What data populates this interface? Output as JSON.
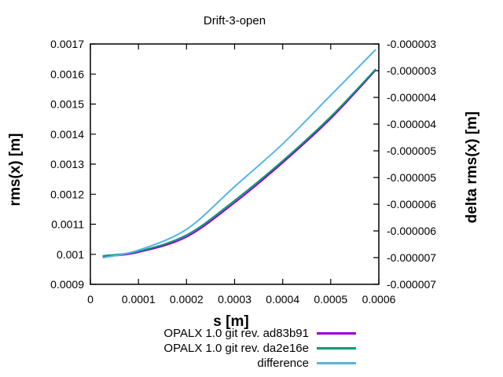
{
  "title": "Drift-3-open",
  "axes": {
    "x": {
      "label": "s [m]",
      "tick_labels": [
        "0",
        "0.0001",
        "0.0002",
        "0.0003",
        "0.0004",
        "0.0005",
        "0.0006"
      ]
    },
    "y_left": {
      "label": "rms(x) [m]",
      "tick_labels_top_to_bottom": [
        "0.0017",
        "0.0016",
        "0.0015",
        "0.0014",
        "0.0013",
        "0.0012",
        "0.0011",
        "0.001",
        "0.0009"
      ]
    },
    "y_right": {
      "label": "delta rms(x) [m]",
      "tick_labels_top_to_bottom": [
        "-0.000003",
        "-0.000003",
        "-0.000004",
        "-0.000004",
        "-0.000005",
        "-0.000005",
        "-0.000006",
        "-0.000006",
        "-0.000007",
        "-0.000007"
      ]
    }
  },
  "chart_data": {
    "type": "line",
    "title": "Drift-3-open",
    "xlabel": "s [m]",
    "ylabel_left": "rms(x) [m]",
    "ylabel_right": "delta rms(x) [m]",
    "xlim": [
      0,
      0.0006
    ],
    "ylim_left": [
      0.0009,
      0.0017
    ],
    "ylim_right": [
      -7.5e-06,
      -3e-06
    ],
    "grid": false,
    "legend_position": "below-plot-right",
    "x": [
      2.7e-05,
      0.0001,
      0.0002,
      0.0003,
      0.0004,
      0.0005,
      0.000593
    ],
    "series": [
      {
        "id": "ad83b91",
        "name": "OPALX 1.0 git rev. ad83b91",
        "color": "#9400d3",
        "axis": "left",
        "values": [
          0.000992,
          0.001007,
          0.001058,
          0.001172,
          0.001305,
          0.001452,
          0.001612
        ]
      },
      {
        "id": "da2e16e",
        "name": "OPALX 1.0 git rev. da2e16e",
        "color": "#009e73",
        "axis": "left",
        "values": [
          0.000995,
          0.00101,
          0.001064,
          0.001179,
          0.001311,
          0.001458,
          0.001615
        ]
      },
      {
        "id": "difference",
        "name": "difference",
        "color": "#56b4e9",
        "axis": "right",
        "values": [
          -7e-06,
          -6.86e-06,
          -6.47e-06,
          -5.67e-06,
          -4.87e-06,
          -3.96e-06,
          -3.11e-06
        ]
      }
    ]
  },
  "colors": {
    "axis": "#000000",
    "background": "#ffffff"
  }
}
